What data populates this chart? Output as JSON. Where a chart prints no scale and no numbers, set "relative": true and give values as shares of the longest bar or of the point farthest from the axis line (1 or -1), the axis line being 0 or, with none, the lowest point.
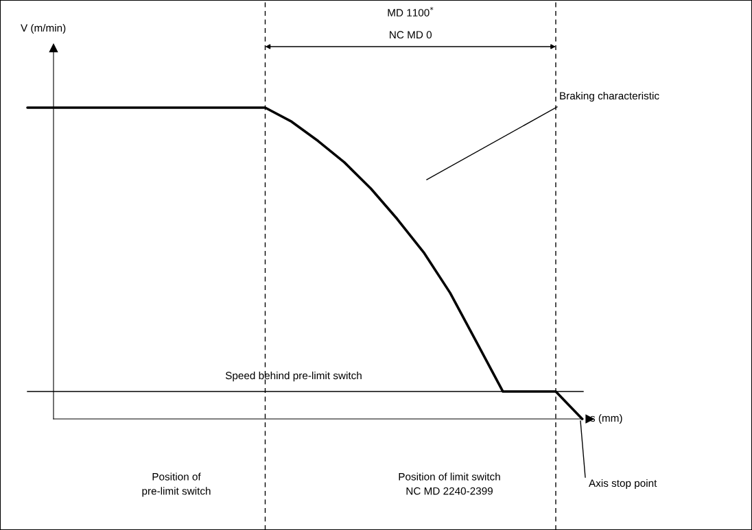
{
  "chart_data": {
    "type": "line",
    "relative": true,
    "xlabel": "s (mm)",
    "categories": [
      null,
      null,
      null,
      null,
      null,
      null,
      null,
      null,
      null,
      null,
      null,
      null,
      null,
      null,
      null,
      null,
      null,
      null,
      null,
      null,
      null,
      null
    ],
    "series": [
      {
        "color": "#000000",
        "values": [
          1.0,
          1.0,
          1.0,
          1.0,
          1.0,
          1.0,
          1.0,
          1.0,
          1.0,
          1.0,
          0.955,
          0.893,
          0.824,
          0.74,
          0.642,
          0.535,
          0.405,
          0.247,
          0.088,
          0.088,
          0.088,
          0.0
        ]
      }
    ],
    "ref_lines": [
      {
        "axis": "y",
        "value": 0.088,
        "label": "Speed behind pre-limit switch",
        "color": "#000000",
        "line_style": "solid"
      }
    ],
    "annotations": [
      "V (m/min)",
      "MD 1100$^{*}$",
      "NC MD 0",
      "Braking characteristic",
      "Axis stop point",
      "Position of\npre-limit switch",
      "Position of limit switch\nNC MD 2240-2399"
    ],
    "legend": false,
    "grid": false,
    "marker": "none",
    "line_style": "solid"
  }
}
